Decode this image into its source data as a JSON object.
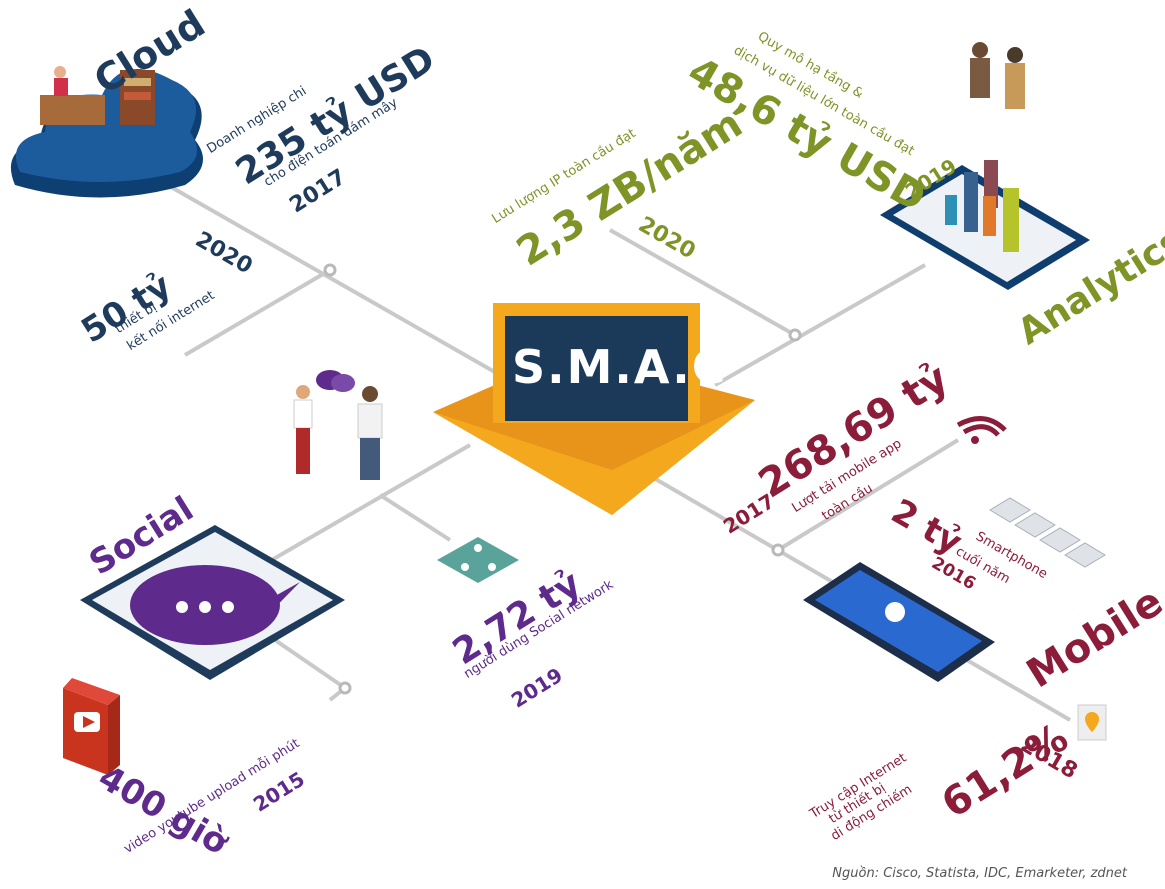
{
  "center": {
    "label": "S.M.A.C"
  },
  "cloud": {
    "title": "Cloud",
    "stat1_caption": "Doanh nghiệp chi",
    "stat1_value": "235 tỷ USD",
    "stat1_desc": "cho điện toán đám mây",
    "stat1_year": "2017",
    "stat2_value": "50 tỷ",
    "stat2_desc1": "thiết bị",
    "stat2_desc2": "kết nối internet",
    "stat2_year": "2020"
  },
  "analytics": {
    "title": "Analytics",
    "stat1_caption1": "Quy mô hạ tầng &",
    "stat1_caption2": "dịch vụ dữ liệu lớn toàn cầu đạt",
    "stat1_value": "48,6 tỷ USD",
    "stat1_year": "2019",
    "stat2_caption": "Lưu lượng IP toàn cầu đạt",
    "stat2_value": "2,3 ZB/năm",
    "stat2_year": "2020"
  },
  "social": {
    "title": "Social",
    "stat1_value": "2,72 tỷ",
    "stat1_desc": "người dùng Social network",
    "stat1_year": "2019",
    "stat2_value": "400 giờ",
    "stat2_desc": "video youtube upload mỗi phút",
    "stat2_year": "2015"
  },
  "mobile": {
    "title": "Mobile",
    "stat1_year": "2017",
    "stat1_value": "268,69 tỷ",
    "stat1_desc1": "Lượt tải mobile app",
    "stat1_desc2": "toàn cầu",
    "stat2_value": "2 tỷ",
    "stat2_desc1": "Smartphone",
    "stat2_desc2": "cuối năm",
    "stat2_year": "2016",
    "stat3_desc1": "Truy cập Internet",
    "stat3_desc2": "từ thiết bị",
    "stat3_desc3": "di động chiếm",
    "stat3_value": "61,2%",
    "stat3_year": "2018"
  },
  "source": "Nguồn: Cisco, Statista, IDC, Emarketer, zdnet",
  "colors": {
    "navy": "#1f3b5c",
    "olive": "#7e9426",
    "purple": "#5e2a8c",
    "crimson": "#8c1d3a",
    "orange": "#f4a81d",
    "line": "#c8c8c8"
  }
}
